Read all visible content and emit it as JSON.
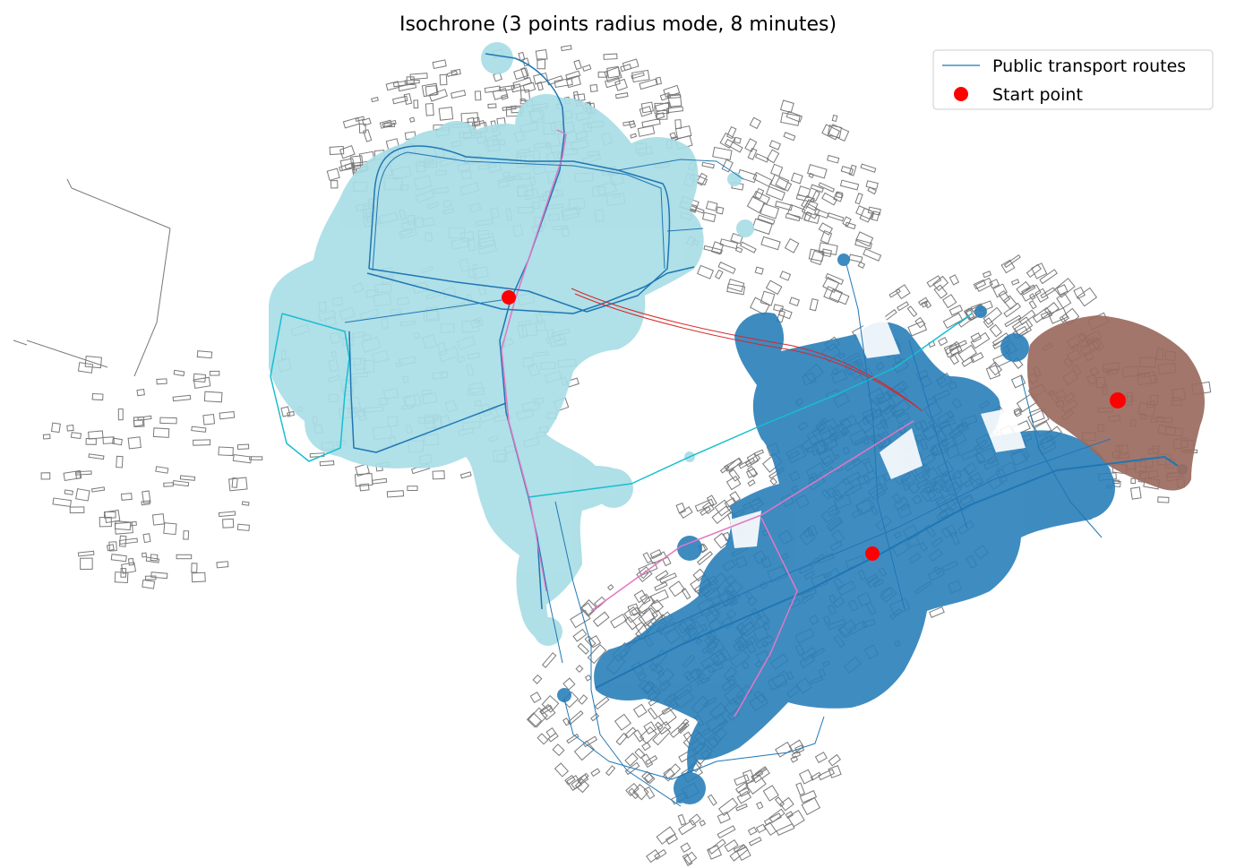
{
  "title": "Isochrone (3 points radius mode, 8 minutes)",
  "legend": {
    "routes_label": "Public transport routes",
    "start_label": "Start point",
    "position": "top-right"
  },
  "colors": {
    "zone_light": "#a9dde6",
    "zone_blue": "#2a7fba",
    "zone_brown": "#9a6a5e",
    "route_main": "#1f77b4",
    "route_cyan": "#17becf",
    "route_pink": "#e377c2",
    "route_red": "#d62728",
    "start_point": "#ff0000",
    "buildings": "#7a7a7a"
  },
  "isochrones": [
    {
      "name": "zone-light",
      "color_key": "zone_light"
    },
    {
      "name": "zone-blue",
      "color_key": "zone_blue"
    },
    {
      "name": "zone-brown",
      "color_key": "zone_brown"
    }
  ],
  "start_points": 3
}
